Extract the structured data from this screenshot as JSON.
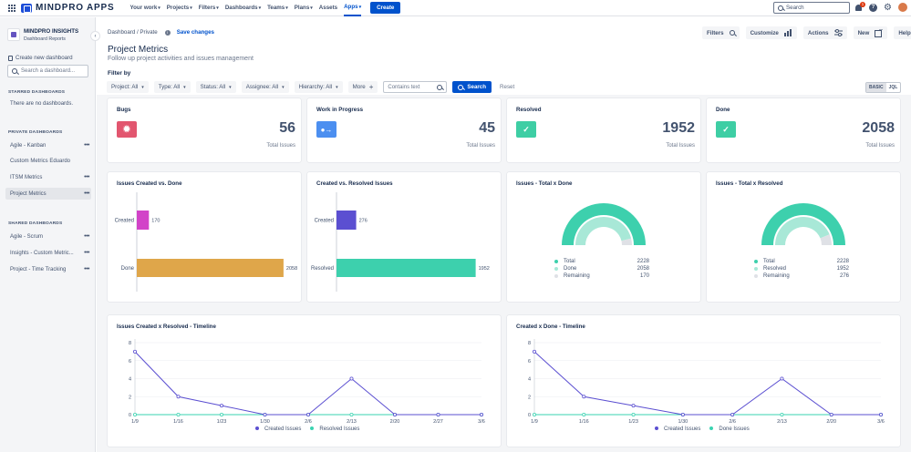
{
  "topbar": {
    "logo_text": "MINDPRO APPS",
    "nav": [
      {
        "label": "Your work"
      },
      {
        "label": "Projects"
      },
      {
        "label": "Filters"
      },
      {
        "label": "Dashboards"
      },
      {
        "label": "Teams"
      },
      {
        "label": "Plans"
      },
      {
        "label": "Assets"
      },
      {
        "label": "Apps"
      }
    ],
    "create_label": "Create",
    "search_placeholder": "Search",
    "notification_count": "1"
  },
  "sidebar": {
    "app_name": "MINDPRO INSIGHTS",
    "app_sub": "Dashboard Reports",
    "create_label": "Create new dashboard",
    "search_placeholder": "Search a dashboard...",
    "starred_head": "STARRED DASHBOARDS",
    "starred_empty": "There are no dashboards.",
    "private_head": "PRIVATE DASHBOARDS",
    "private_items": [
      "Agile - Kanban",
      "Custom Metrics Eduardo",
      "ITSM Metrics",
      "Project Metrics"
    ],
    "shared_head": "SHARED DASHBOARDS",
    "shared_items": [
      "Agile - Scrum",
      "Insights - Custom Metric...",
      "Project - Time Tracking"
    ]
  },
  "header": {
    "breadcrumb": "Dashboard / Private",
    "save_label": "Save changes",
    "title": "Project Metrics",
    "subtitle": "Follow up project activities and issues management",
    "buttons": {
      "filters": "Filters",
      "customize": "Customize",
      "actions": "Actions",
      "new": "New",
      "help": "Help"
    }
  },
  "filters": {
    "label": "Filter by",
    "items": [
      "Project: All",
      "Type: All",
      "Status: All",
      "Assignee: All",
      "Hierarchy: All"
    ],
    "more": "More",
    "contains_placeholder": "Contains text",
    "search_label": "Search",
    "reset_label": "Reset",
    "mode_basic": "BASIC",
    "mode_jql": "JQL"
  },
  "stats": [
    {
      "title": "Bugs",
      "value": "56",
      "label": "Total Issues",
      "color": "#e2566f"
    },
    {
      "title": "Work in Progress",
      "value": "45",
      "label": "Total Issues",
      "color": "#4c8ff0"
    },
    {
      "title": "Resolved",
      "value": "1952",
      "label": "Total Issues",
      "color": "#3ecea4"
    },
    {
      "title": "Done",
      "value": "2058",
      "label": "Total Issues",
      "color": "#3ecea4"
    }
  ],
  "colors": {
    "created": "#5b4fd1",
    "resolved": "#3ad3b1",
    "magenta": "#d243c8",
    "gold": "#dfa64a",
    "teal": "#3dd0ad",
    "light": "#a8e8d7",
    "remaining": "#dfe1e6"
  },
  "chart_data": [
    {
      "type": "bar",
      "title": "Issues Created vs. Done",
      "categories": [
        "Created",
        "Done"
      ],
      "values": [
        170,
        2058
      ],
      "xlim": [
        0,
        2200
      ]
    },
    {
      "type": "bar",
      "title": "Created vs. Resolved Issues",
      "categories": [
        "Created",
        "Resolved"
      ],
      "values": [
        276,
        1952
      ],
      "xlim": [
        0,
        2200
      ]
    },
    {
      "type": "pie",
      "title": "Issues - Total x Done",
      "slices": [
        {
          "name": "Total",
          "value": 2228
        },
        {
          "name": "Done",
          "value": 2058
        },
        {
          "name": "Remaining",
          "value": 170
        }
      ]
    },
    {
      "type": "pie",
      "title": "Issues - Total x Resolved",
      "slices": [
        {
          "name": "Total",
          "value": 2228
        },
        {
          "name": "Resolved",
          "value": 1952
        },
        {
          "name": "Remaining",
          "value": 276
        }
      ]
    },
    {
      "type": "line",
      "title": "Issues Created x Resolved - Timeline",
      "x": [
        "1/9",
        "1/16",
        "1/23",
        "1/30",
        "2/6",
        "2/13",
        "2/20",
        "2/27",
        "3/6"
      ],
      "ylim": [
        0,
        8
      ],
      "yticks": [
        0,
        2,
        4,
        6,
        8
      ],
      "series": [
        {
          "name": "Created Issues",
          "values": [
            7,
            2,
            1,
            0,
            0,
            4,
            0,
            0,
            0
          ]
        },
        {
          "name": "Resolved Issues",
          "values": [
            0,
            0,
            0,
            0,
            0,
            0,
            0,
            0,
            0
          ]
        }
      ]
    },
    {
      "type": "line",
      "title": "Created x Done - Timeline",
      "x": [
        "1/9",
        "1/16",
        "1/23",
        "1/30",
        "2/6",
        "2/13",
        "2/20",
        "3/6"
      ],
      "ylim": [
        0,
        8
      ],
      "yticks": [
        0,
        2,
        4,
        6,
        8
      ],
      "series": [
        {
          "name": "Created Issues",
          "values": [
            7,
            2,
            1,
            0,
            0,
            4,
            0,
            0
          ]
        },
        {
          "name": "Done Issues",
          "values": [
            0,
            0,
            0,
            0,
            0,
            0,
            0,
            0
          ]
        }
      ]
    }
  ]
}
